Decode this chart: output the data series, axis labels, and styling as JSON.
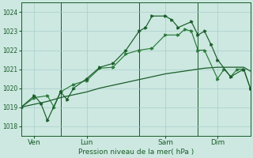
{
  "background_color": "#cce8e0",
  "grid_color": "#aacccc",
  "line_color_dark": "#1a5c2a",
  "line_color_mid": "#2a7a3a",
  "xlabel": "Pression niveau de la mer( hPa )",
  "ylim": [
    1017.5,
    1024.5
  ],
  "yticks": [
    1018,
    1019,
    1020,
    1021,
    1022,
    1023,
    1024
  ],
  "day_labels": [
    "Ven",
    "Lun",
    "Sam",
    "Dim"
  ],
  "day_positions": [
    2,
    10,
    22,
    30
  ],
  "vline_positions": [
    6,
    18,
    27
  ],
  "total_points": 36,
  "series1_x": [
    0,
    2,
    4,
    6,
    8,
    10,
    12,
    14,
    16,
    18,
    20,
    22,
    24,
    26,
    28,
    30,
    32,
    34,
    35
  ],
  "series1_y": [
    1019.0,
    1019.15,
    1019.3,
    1019.5,
    1019.65,
    1019.8,
    1020.0,
    1020.15,
    1020.3,
    1020.45,
    1020.6,
    1020.75,
    1020.85,
    1020.95,
    1021.05,
    1021.1,
    1021.1,
    1021.1,
    1020.9
  ],
  "series2_x": [
    0,
    2,
    4,
    5,
    6,
    8,
    10,
    12,
    14,
    16,
    18,
    20,
    22,
    24,
    25,
    26,
    27,
    28,
    30,
    31,
    32,
    33,
    34,
    35
  ],
  "series2_y": [
    1019.0,
    1019.5,
    1019.6,
    1019.0,
    1019.8,
    1020.2,
    1020.4,
    1021.05,
    1021.1,
    1021.8,
    1022.0,
    1022.1,
    1022.8,
    1022.8,
    1023.1,
    1023.0,
    1022.0,
    1022.0,
    1020.5,
    1021.0,
    1020.6,
    1021.0,
    1021.0,
    1020.0
  ],
  "series3_x": [
    0,
    2,
    3,
    4,
    6,
    7,
    8,
    10,
    12,
    14,
    16,
    18,
    19,
    20,
    22,
    23,
    24,
    26,
    27,
    28,
    29,
    30,
    32,
    34,
    35
  ],
  "series3_y": [
    1019.0,
    1019.6,
    1019.2,
    1018.3,
    1019.8,
    1019.4,
    1020.0,
    1020.5,
    1021.1,
    1021.3,
    1022.0,
    1023.0,
    1023.2,
    1023.8,
    1023.8,
    1023.6,
    1023.2,
    1023.5,
    1022.8,
    1023.0,
    1022.3,
    1021.5,
    1020.6,
    1021.0,
    1020.0
  ]
}
